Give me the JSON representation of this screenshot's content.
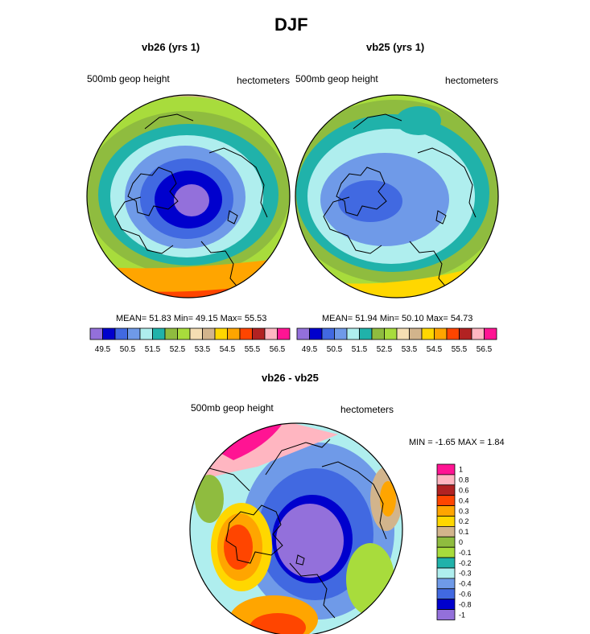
{
  "page_title": "DJF",
  "colors": {
    "abs_palette": [
      "#9370db",
      "#0000cd",
      "#4169e1",
      "#6f9ae8",
      "#afeeee",
      "#20b2aa",
      "#8fbc3f",
      "#a8dc3c",
      "#f5deb3",
      "#d2b48c",
      "#ffd700",
      "#ffa500",
      "#ff4500",
      "#b22222",
      "#ffb6c1",
      "#ff1493"
    ],
    "diff_palette": [
      "#9370db",
      "#0000cd",
      "#4169e1",
      "#6f9ae8",
      "#afeeee",
      "#20b2aa",
      "#a8dc3c",
      "#8fbc3f",
      "#d2b48c",
      "#ffd700",
      "#ffa500",
      "#ff4500",
      "#b22222",
      "#ffb6c1",
      "#ff1493"
    ]
  },
  "chart_data": [
    {
      "type": "heatmap",
      "title": "vb26 (yrs 1)",
      "left_label": "500mb geop height",
      "right_label": "hectometers",
      "stats": "MEAN= 51.83  Min= 49.15  Max= 55.53",
      "mean": 51.83,
      "min": 49.15,
      "max": 55.53,
      "levels": [
        49.5,
        50,
        50.5,
        51,
        51.5,
        52,
        52.5,
        53,
        53.5,
        54,
        54.5,
        55,
        55.5,
        56,
        56.5
      ],
      "tick_labels": [
        "49.5",
        "50.5",
        "51.5",
        "52.5",
        "53.5",
        "54.5",
        "55.5",
        "56.5"
      ],
      "projection": "north polar stereographic"
    },
    {
      "type": "heatmap",
      "title": "vb25 (yrs 1)",
      "left_label": "500mb geop height",
      "right_label": "hectometers",
      "stats": "MEAN= 51.94  Min= 50.10  Max= 54.73",
      "mean": 51.94,
      "min": 50.1,
      "max": 54.73,
      "levels": [
        49.5,
        50,
        50.5,
        51,
        51.5,
        52,
        52.5,
        53,
        53.5,
        54,
        54.5,
        55,
        55.5,
        56,
        56.5
      ],
      "tick_labels": [
        "49.5",
        "50.5",
        "51.5",
        "52.5",
        "53.5",
        "54.5",
        "55.5",
        "56.5"
      ],
      "projection": "north polar stereographic"
    },
    {
      "type": "heatmap",
      "title": "vb26 - vb25",
      "left_label": "500mb geop height",
      "right_label": "hectometers",
      "stats": "MIN = -1.65 MAX =  1.84",
      "min": -1.65,
      "max": 1.84,
      "levels": [
        -1,
        -0.8,
        -0.6,
        -0.4,
        -0.3,
        -0.2,
        -0.1,
        0,
        0.1,
        0.2,
        0.3,
        0.4,
        0.6,
        0.8,
        1
      ],
      "tick_labels": [
        "1",
        "0.8",
        "0.6",
        "0.4",
        "0.3",
        "0.2",
        "0.1",
        "0",
        "-0.1",
        "-0.2",
        "-0.3",
        "-0.4",
        "-0.6",
        "-0.8",
        "-1"
      ],
      "projection": "north polar stereographic"
    }
  ]
}
